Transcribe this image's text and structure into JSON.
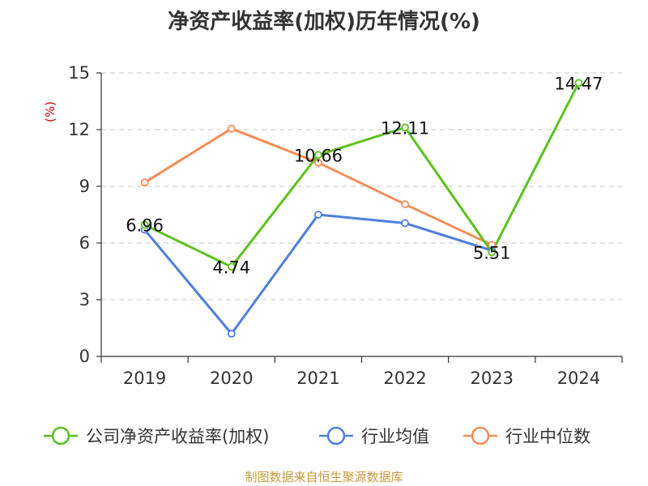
{
  "chart_data": {
    "type": "line",
    "title": "净资产收益率(加权)历年情况(%)",
    "ylabel": "(%)",
    "xlabel": "",
    "categories": [
      "2019",
      "2020",
      "2021",
      "2022",
      "2023",
      "2024"
    ],
    "ylim": [
      0,
      15
    ],
    "yticks": [
      0,
      3,
      6,
      9,
      12,
      15
    ],
    "grid": true,
    "legend_position": "bottom",
    "series": [
      {
        "name": "公司净资产收益率(加权)",
        "color": "#5bc21e",
        "values": [
          6.96,
          4.74,
          10.66,
          12.11,
          5.51,
          14.47
        ],
        "labels": [
          "6.96",
          "4.74",
          "10.66",
          "12.11",
          "5.51",
          "14.47"
        ]
      },
      {
        "name": "行业均值",
        "color": "#4e7fdb",
        "values": [
          6.7,
          1.2,
          7.5,
          7.05,
          5.6,
          null
        ]
      },
      {
        "name": "行业中位数",
        "color": "#f58d58",
        "values": [
          9.2,
          12.05,
          10.25,
          8.05,
          5.9,
          null
        ]
      }
    ]
  },
  "source": "制图数据来自恒生聚源数据库"
}
